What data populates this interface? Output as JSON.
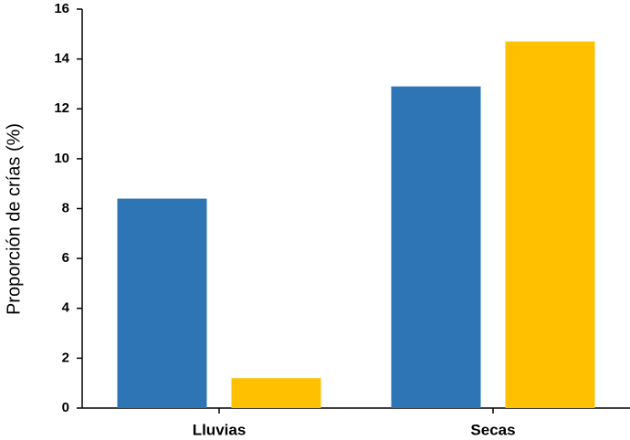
{
  "chart_data": {
    "type": "bar",
    "y_label": "Proporción de crías (%)",
    "categories": [
      "Lluvias",
      "Secas"
    ],
    "series": [
      {
        "color": "#2e75b6",
        "values": [
          8.4,
          12.9
        ]
      },
      {
        "color": "#ffc000",
        "values": [
          1.2,
          14.7
        ]
      }
    ],
    "ylim": [
      0,
      16
    ],
    "yticks": [
      0,
      2,
      4,
      6,
      8,
      10,
      12,
      14,
      16
    ],
    "grid": false
  }
}
